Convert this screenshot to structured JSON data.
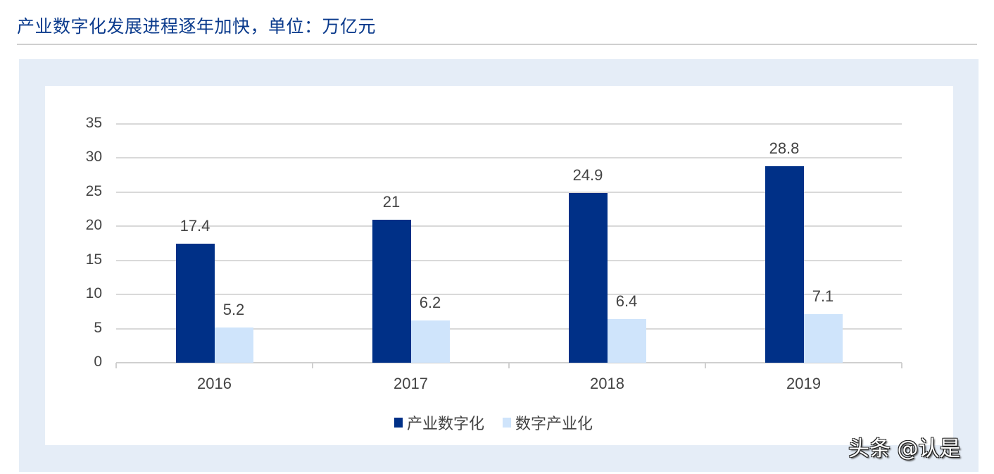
{
  "header": {
    "title": "产业数字化发展进程逐年加快，单位：万亿元"
  },
  "colors": {
    "series1": "#003087",
    "series2": "#cfe4fb",
    "title": "#0a3a8c",
    "panel": "#e5edf7"
  },
  "chart_data": {
    "type": "bar",
    "title": "产业数字化发展进程逐年加快，单位：万亿元",
    "xlabel": "",
    "ylabel": "",
    "categories": [
      "2016",
      "2017",
      "2018",
      "2019"
    ],
    "series": [
      {
        "name": "产业数字化",
        "values": [
          17.4,
          21,
          24.9,
          28.8
        ]
      },
      {
        "name": "数字产业化",
        "values": [
          5.2,
          6.2,
          6.4,
          7.1
        ]
      }
    ],
    "ylim": [
      0,
      35
    ],
    "yticks": [
      "0",
      "5",
      "10",
      "15",
      "20",
      "25",
      "30",
      "35"
    ],
    "grid": true,
    "legend_position": "bottom",
    "data_labels": {
      "series1": [
        "17.4",
        "21",
        "24.9",
        "28.8"
      ],
      "series2": [
        "5.2",
        "6.2",
        "6.4",
        "7.1"
      ]
    }
  },
  "legend": {
    "items": [
      {
        "label": "产业数字化"
      },
      {
        "label": "数字产业化"
      }
    ]
  },
  "watermark": {
    "text": "头条 @认是"
  }
}
